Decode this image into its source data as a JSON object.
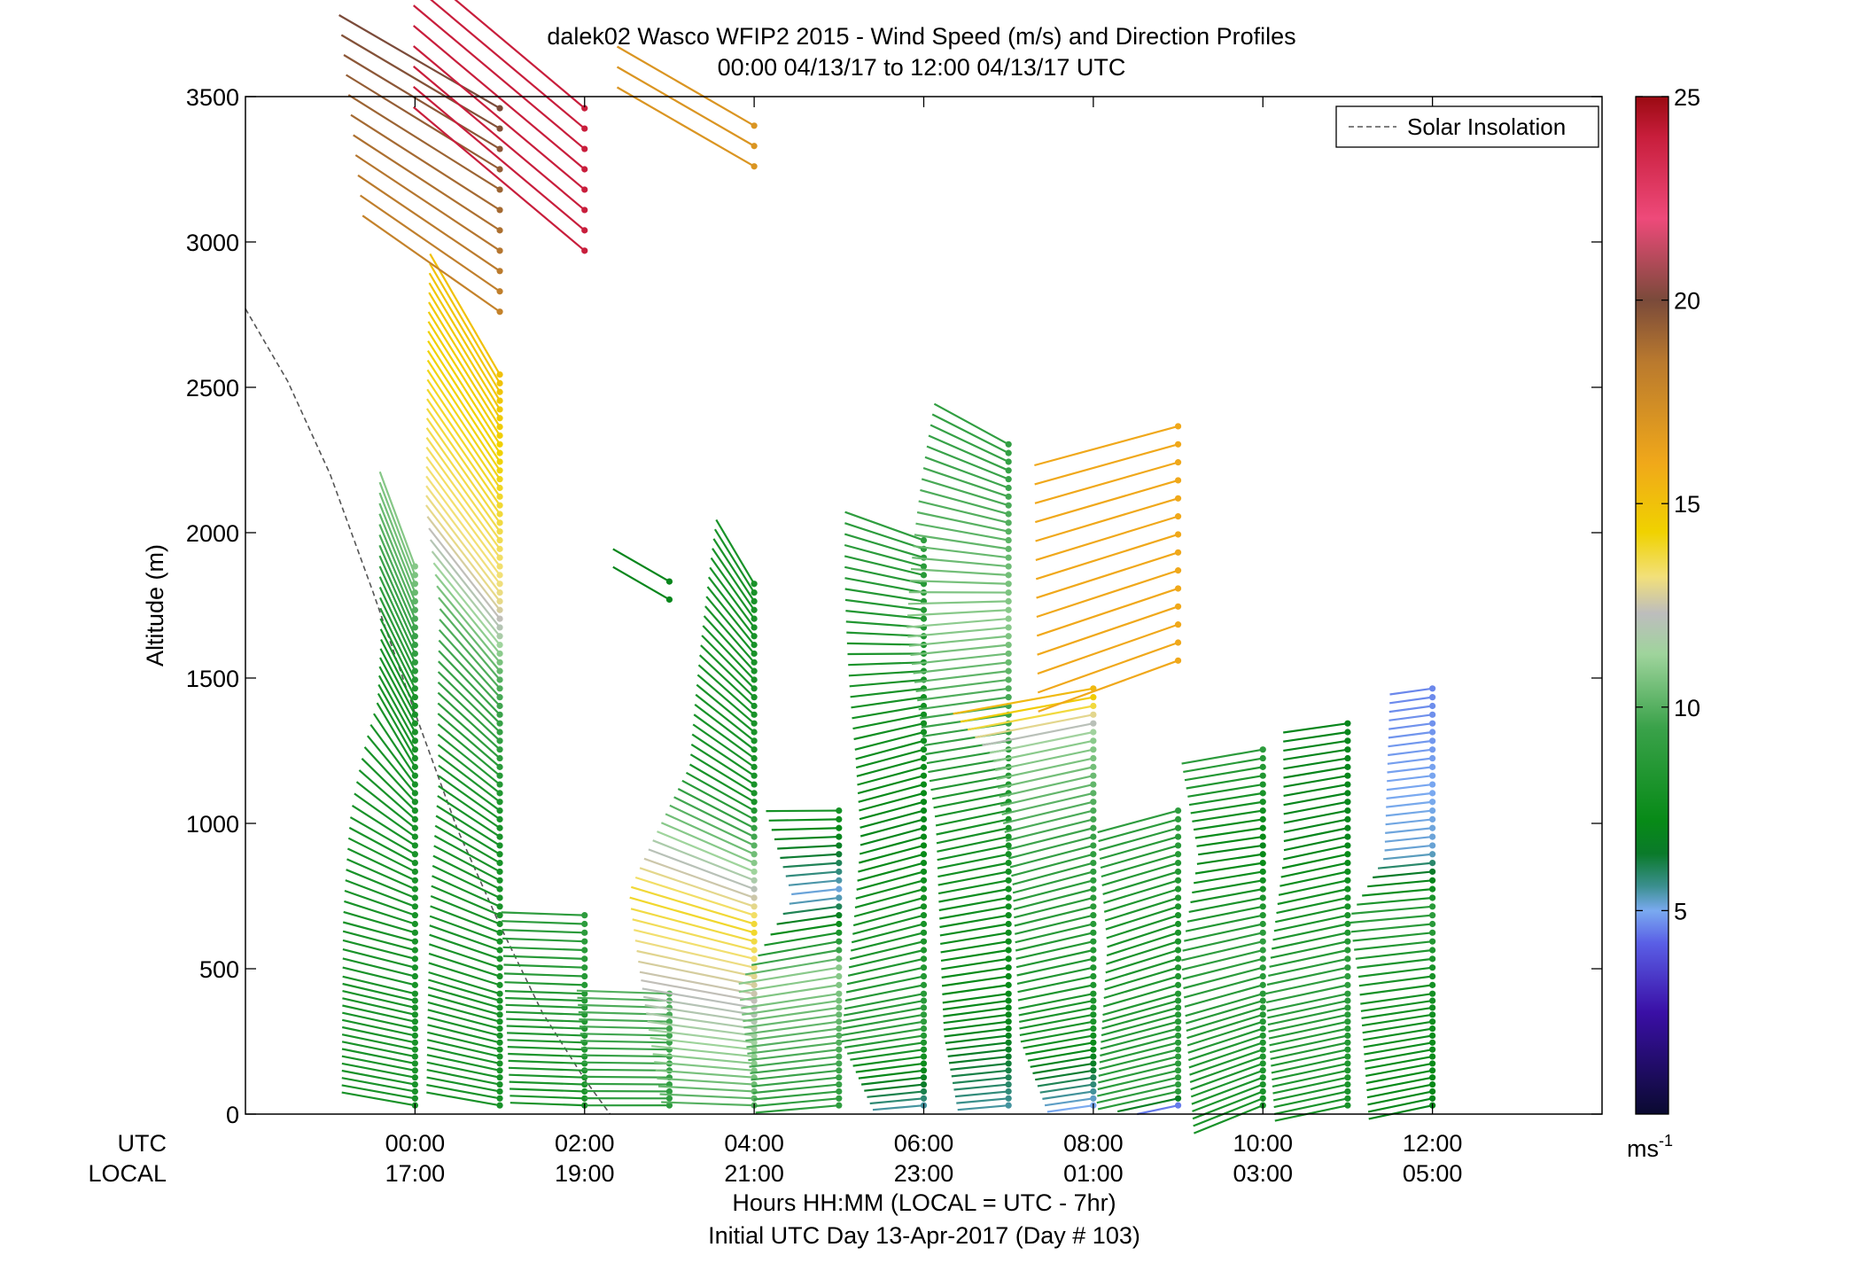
{
  "chart_data": {
    "type": "wind-barb-profile",
    "title": "dalek02 Wasco WFIP2 2015 - Wind Speed (m/s) and Direction Profiles",
    "subtitle": "00:00 04/13/17 to 12:00 04/13/17  UTC",
    "ylabel": "Altitude (m)",
    "xlabel": "Hours HH:MM  (LOCAL = UTC - 7hr)",
    "xlabel2": "Initial UTC Day 13-Apr-2017 (Day # 103)",
    "utc_row_label": "UTC",
    "local_row_label": "LOCAL",
    "x_ticks_utc": [
      "00:00",
      "02:00",
      "04:00",
      "06:00",
      "08:00",
      "10:00",
      "12:00"
    ],
    "x_ticks_local": [
      "17:00",
      "19:00",
      "21:00",
      "23:00",
      "01:00",
      "03:00",
      "05:00"
    ],
    "xlim_hours": [
      -2,
      14
    ],
    "ylim": [
      0,
      3500
    ],
    "y_ticks": [
      0,
      500,
      1000,
      1500,
      2000,
      2500,
      3000,
      3500
    ],
    "legend": {
      "label": "Solar Insolation",
      "placement": "top-right",
      "style": "dashed"
    },
    "colorbar": {
      "ticks": [
        5,
        10,
        15,
        20,
        25
      ],
      "units": "ms",
      "units_exponent": "-1",
      "range": [
        0,
        25
      ],
      "stops": [
        {
          "v": 0,
          "c": "#0a0a30"
        },
        {
          "v": 2.5,
          "c": "#3a0fa6"
        },
        {
          "v": 4.2,
          "c": "#5a5fe6"
        },
        {
          "v": 5.0,
          "c": "#7aaaf0"
        },
        {
          "v": 5.6,
          "c": "#3b8f8f"
        },
        {
          "v": 6.4,
          "c": "#0a7a2a"
        },
        {
          "v": 7.2,
          "c": "#078a17"
        },
        {
          "v": 9.5,
          "c": "#3aa24a"
        },
        {
          "v": 11.3,
          "c": "#9fd49c"
        },
        {
          "v": 12.3,
          "c": "#bdbdbd"
        },
        {
          "v": 13.2,
          "c": "#f2e07a"
        },
        {
          "v": 14.3,
          "c": "#f0d200"
        },
        {
          "v": 16.0,
          "c": "#f0a81a"
        },
        {
          "v": 18.5,
          "c": "#b9792e"
        },
        {
          "v": 20.0,
          "c": "#7a4a3a"
        },
        {
          "v": 22.0,
          "c": "#ee4a7a"
        },
        {
          "v": 24.0,
          "c": "#c81e3c"
        },
        {
          "v": 25.0,
          "c": "#9a0a12"
        }
      ]
    },
    "solar_insolation_curve": [
      {
        "t": -2.0,
        "z": 2770
      },
      {
        "t": -1.5,
        "z": 2520
      },
      {
        "t": -1.0,
        "z": 2200
      },
      {
        "t": -0.5,
        "z": 1800
      },
      {
        "t": 0.0,
        "z": 1380
      },
      {
        "t": 0.5,
        "z": 980
      },
      {
        "t": 1.0,
        "z": 650
      },
      {
        "t": 1.5,
        "z": 350
      },
      {
        "t": 2.0,
        "z": 120
      },
      {
        "t": 2.3,
        "z": 0
      }
    ],
    "profiles": [
      {
        "t": 0.0,
        "spd": [
          [
            30,
            8
          ],
          [
            1400,
            8
          ],
          [
            1910,
            11
          ]
        ],
        "dir": [
          [
            30,
            280
          ],
          [
            600,
            285
          ],
          [
            900,
            300
          ],
          [
            1200,
            330
          ],
          [
            1910,
            340
          ]
        ]
      },
      {
        "t": 1.0,
        "spd": [
          [
            30,
            8
          ],
          [
            1000,
            8
          ],
          [
            1500,
            10
          ],
          [
            1760,
            13
          ],
          [
            2550,
            15
          ]
        ],
        "dir": [
          [
            30,
            280
          ],
          [
            600,
            290
          ],
          [
            1000,
            305
          ],
          [
            1500,
            320
          ],
          [
            2550,
            330
          ]
        ]
      },
      {
        "t": 1.0,
        "spd": [
          [
            2760,
            18
          ],
          [
            3470,
            20
          ]
        ],
        "dir": [
          [
            2760,
            305
          ],
          [
            3470,
            300
          ]
        ]
      },
      {
        "t": 2.0,
        "spd": [
          [
            30,
            8
          ],
          [
            710,
            9
          ]
        ],
        "dir": [
          [
            30,
            272
          ],
          [
            710,
            272
          ]
        ]
      },
      {
        "t": 2.0,
        "spd": [
          [
            2970,
            24
          ],
          [
            3470,
            24
          ]
        ],
        "dir": [
          [
            2970,
            310
          ],
          [
            3470,
            310
          ]
        ]
      },
      {
        "t": 3.0,
        "spd": [
          [
            30,
            9
          ],
          [
            430,
            10
          ]
        ],
        "dir": [
          [
            30,
            270
          ],
          [
            430,
            272
          ]
        ]
      },
      {
        "t": 3.0,
        "spd": [
          [
            1770,
            7
          ],
          [
            1840,
            7
          ]
        ],
        "dir": [
          [
            1770,
            300
          ],
          [
            1840,
            300
          ]
        ]
      },
      {
        "t": 4.0,
        "spd": [
          [
            30,
            10
          ],
          [
            640,
            14
          ],
          [
            1070,
            8
          ],
          [
            1840,
            8
          ]
        ],
        "dir": [
          [
            30,
            272
          ],
          [
            600,
            285
          ],
          [
            1070,
            300
          ],
          [
            1840,
            330
          ]
        ]
      },
      {
        "t": 4.0,
        "spd": [
          [
            3260,
            17
          ],
          [
            3400,
            17
          ]
        ],
        "dir": [
          [
            3260,
            300
          ],
          [
            3400,
            300
          ]
        ]
      },
      {
        "t": 5.0,
        "spd": [
          [
            30,
            9
          ],
          [
            500,
            11
          ],
          [
            760,
            5
          ],
          [
            1060,
            8
          ]
        ],
        "dir": [
          [
            30,
            265
          ],
          [
            600,
            260
          ],
          [
            1060,
            270
          ]
        ]
      },
      {
        "t": 6.0,
        "spd": [
          [
            30,
            5.5
          ],
          [
            300,
            9
          ],
          [
            1000,
            7
          ],
          [
            1980,
            9
          ]
        ],
        "dir": [
          [
            30,
            265
          ],
          [
            700,
            255
          ],
          [
            1300,
            255
          ],
          [
            1980,
            290
          ]
        ]
      },
      {
        "t": 7.0,
        "spd": [
          [
            30,
            5.5
          ],
          [
            300,
            7
          ],
          [
            1060,
            8
          ],
          [
            1700,
            11
          ],
          [
            2330,
            9
          ]
        ],
        "dir": [
          [
            30,
            265
          ],
          [
            1000,
            258
          ],
          [
            1700,
            265
          ],
          [
            2330,
            300
          ]
        ]
      },
      {
        "t": 8.0,
        "spd": [
          [
            30,
            5
          ],
          [
            300,
            8
          ],
          [
            870,
            9
          ],
          [
            1300,
            11
          ],
          [
            1490,
            16
          ]
        ],
        "dir": [
          [
            30,
            262
          ],
          [
            870,
            255
          ],
          [
            1490,
            260
          ]
        ]
      },
      {
        "t": 9.0,
        "spd": [
          [
            30,
            4.5
          ],
          [
            80,
            9
          ],
          [
            650,
            8
          ],
          [
            1060,
            9
          ]
        ],
        "dir": [
          [
            30,
            258
          ],
          [
            650,
            252
          ],
          [
            1060,
            255
          ]
        ]
      },
      {
        "t": 9.0,
        "spd": [
          [
            1560,
            16
          ],
          [
            2400,
            16
          ]
        ],
        "dir": [
          [
            1560,
            250
          ],
          [
            2400,
            255
          ]
        ]
      },
      {
        "t": 10.0,
        "spd": [
          [
            30,
            8
          ],
          [
            600,
            9
          ],
          [
            920,
            7
          ],
          [
            1280,
            9
          ]
        ],
        "dir": [
          [
            30,
            248
          ],
          [
            920,
            262
          ],
          [
            1280,
            260
          ]
        ]
      },
      {
        "t": 11.0,
        "spd": [
          [
            30,
            8
          ],
          [
            470,
            9
          ],
          [
            940,
            7
          ],
          [
            1350,
            7
          ]
        ],
        "dir": [
          [
            30,
            258
          ],
          [
            940,
            258
          ],
          [
            1350,
            262
          ]
        ]
      },
      {
        "t": 12.0,
        "spd": [
          [
            30,
            7
          ],
          [
            500,
            8
          ],
          [
            700,
            9
          ],
          [
            900,
            5.2
          ],
          [
            1490,
            4.6
          ]
        ],
        "dir": [
          [
            30,
            258
          ],
          [
            700,
            265
          ],
          [
            1490,
            262
          ]
        ]
      }
    ]
  }
}
